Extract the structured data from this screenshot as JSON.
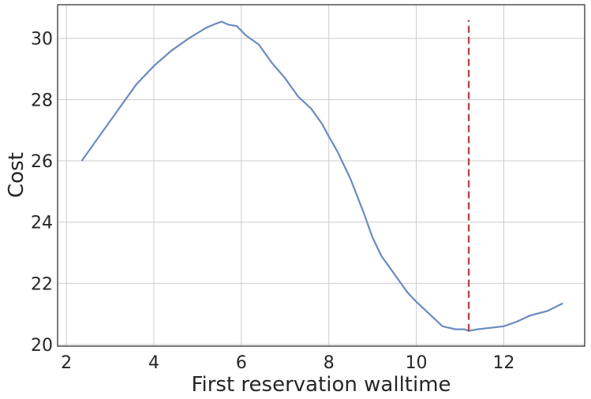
{
  "chart_data": {
    "type": "line",
    "title": "",
    "xlabel": "First reservation walltime",
    "ylabel": "Cost",
    "xlim": [
      1.8,
      13.85
    ],
    "ylim": [
      19.95,
      31.1
    ],
    "xticks": [
      2,
      4,
      6,
      8,
      10,
      12
    ],
    "yticks": [
      20,
      22,
      24,
      26,
      28,
      30
    ],
    "grid": true,
    "colors": {
      "line": "#6a8cbf",
      "marker_line": "#b5474b"
    },
    "series": [
      {
        "x": [
          2.35,
          2.8,
          3.2,
          3.6,
          4.0,
          4.4,
          4.8,
          5.2,
          5.45,
          5.55,
          5.7,
          5.9,
          6.1,
          6.4,
          6.7,
          7.0,
          7.3,
          7.6,
          7.85,
          8.0,
          8.2,
          8.5,
          8.8,
          9.0,
          9.2,
          9.5,
          9.8,
          10.0,
          10.3,
          10.6,
          10.9,
          11.1,
          11.2,
          11.4,
          11.7,
          12.0,
          12.3,
          12.6,
          13.0,
          13.35
        ],
        "y": [
          26.0,
          26.9,
          27.7,
          28.5,
          29.1,
          29.6,
          30.0,
          30.35,
          30.5,
          30.55,
          30.45,
          30.4,
          30.1,
          29.8,
          29.2,
          28.7,
          28.1,
          27.7,
          27.2,
          26.8,
          26.3,
          25.4,
          24.3,
          23.5,
          22.9,
          22.3,
          21.7,
          21.4,
          21.0,
          20.6,
          20.5,
          20.5,
          20.45,
          20.5,
          20.55,
          20.6,
          20.75,
          20.95,
          21.1,
          21.35
        ]
      }
    ],
    "annotations": [
      {
        "type": "vline",
        "x": 11.2,
        "y_from": 20.45,
        "y_to": 30.6,
        "style": "dashed"
      }
    ]
  }
}
